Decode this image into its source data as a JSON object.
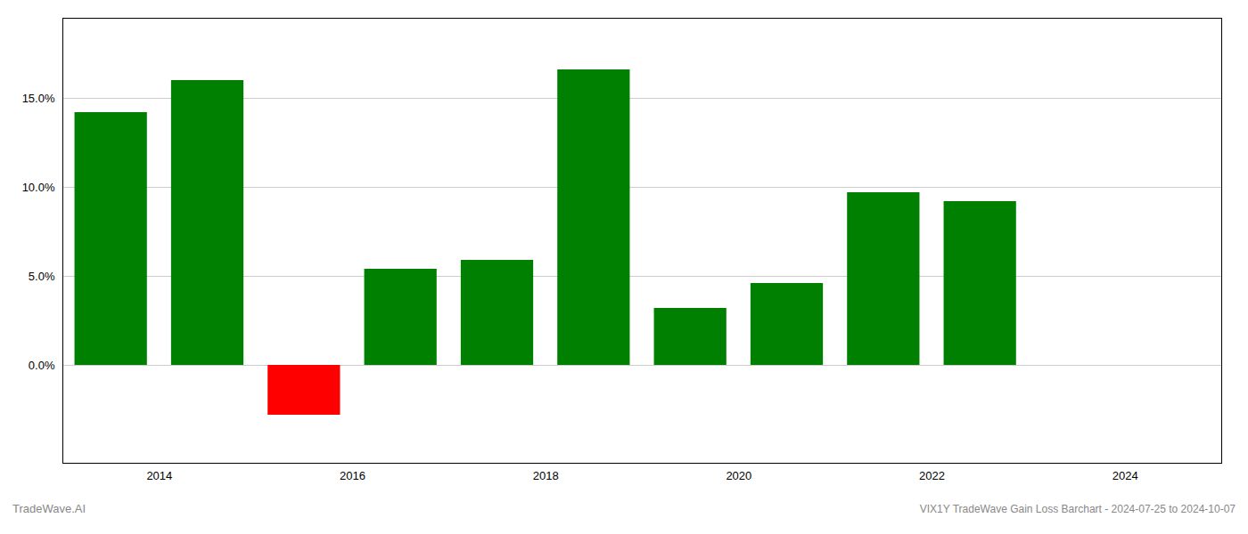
{
  "chart_data": {
    "type": "bar",
    "title": "VIX1Y TradeWave Gain Loss Barchart - 2024-07-25 to 2024-10-07",
    "annotations": [
      "TradeWave.AI"
    ],
    "x": [
      2013.5,
      2014.5,
      2015.5,
      2016.5,
      2017.5,
      2018.5,
      2019.5,
      2020.5,
      2021.5,
      2022.5
    ],
    "values": [
      0.142,
      0.16,
      -0.028,
      0.054,
      0.059,
      0.166,
      0.032,
      0.046,
      0.097,
      0.092
    ],
    "colors": [
      "#008000",
      "#008000",
      "#ff0000",
      "#008000",
      "#008000",
      "#008000",
      "#008000",
      "#008000",
      "#008000",
      "#008000"
    ],
    "xlim": [
      2013.0,
      2025.0
    ],
    "xticks": [
      2014,
      2016,
      2018,
      2020,
      2022,
      2024
    ],
    "ylim": [
      -0.055,
      0.195
    ],
    "yticks": [
      {
        "value": 0.0,
        "label": "0.0%"
      },
      {
        "value": 0.05,
        "label": "5.0%"
      },
      {
        "value": 0.1,
        "label": "10.0%"
      },
      {
        "value": 0.15,
        "label": "15.0%"
      }
    ],
    "grid": true
  }
}
